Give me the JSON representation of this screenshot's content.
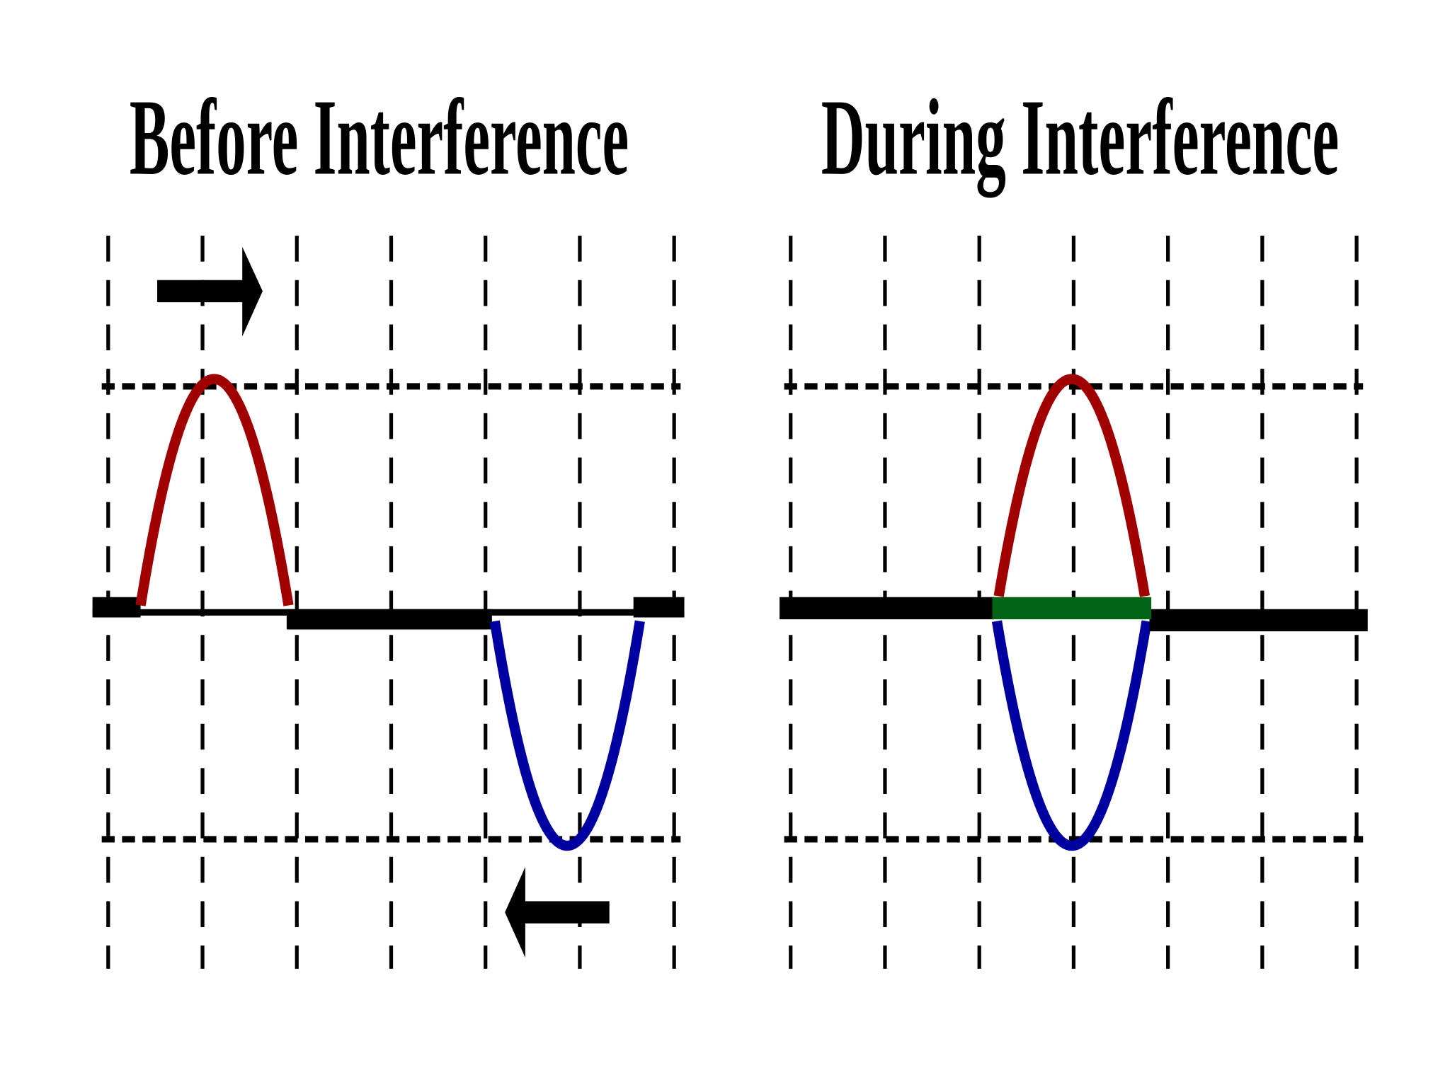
{
  "panels": [
    {
      "title": "Before Interference"
    },
    {
      "title": "During Interference"
    }
  ]
}
